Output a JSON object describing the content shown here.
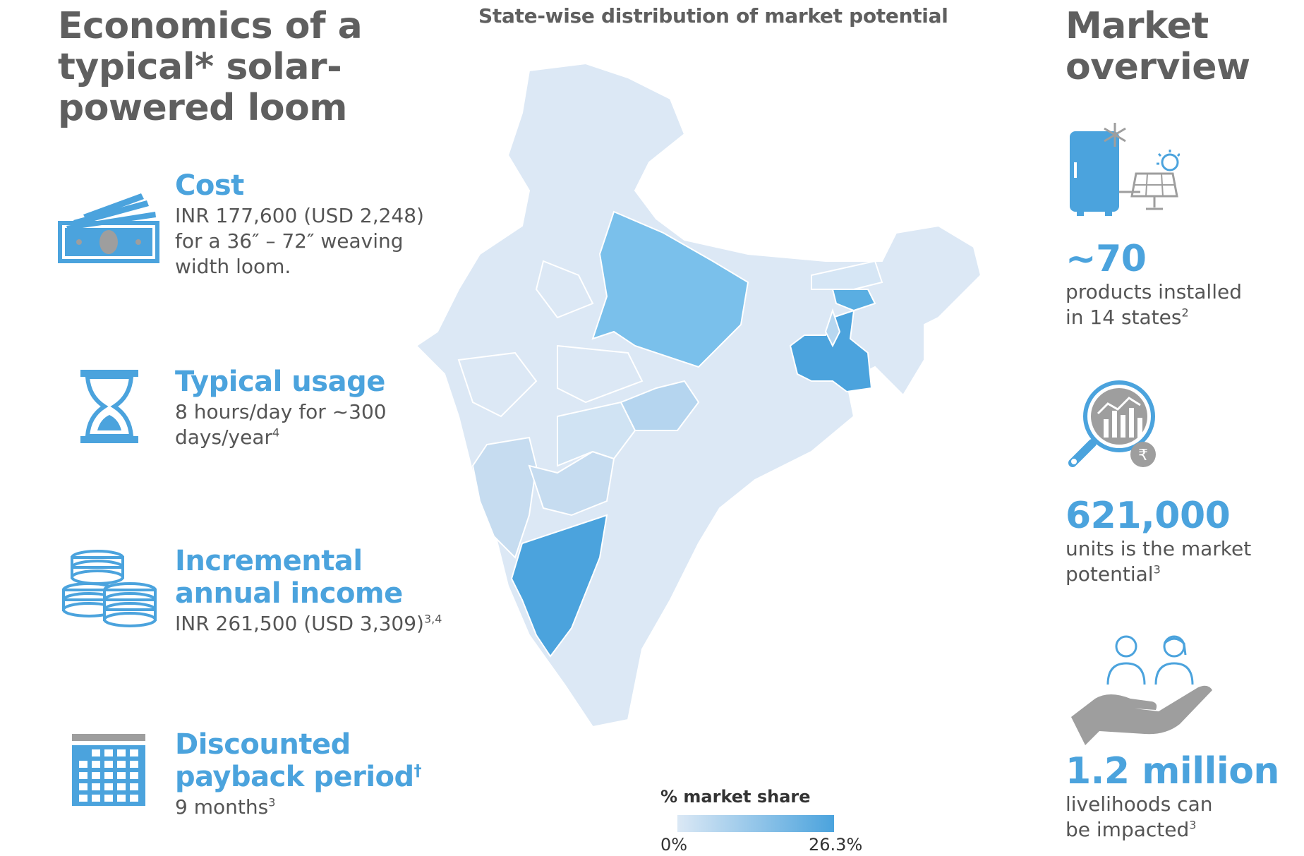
{
  "left": {
    "heading_lines": [
      "Economics of a",
      "typical* solar-",
      "powered loom"
    ],
    "items": [
      {
        "icon": "cash-icon",
        "title_lines": [
          "Cost"
        ],
        "body_lines": [
          "INR 177,600 (USD 2,248)",
          "for a 36″ – 72″ weaving",
          "width loom."
        ]
      },
      {
        "icon": "hourglass-icon",
        "title_lines": [
          "Typical usage"
        ],
        "body_lines": [
          "8 hours/day for ~300",
          "days/year"
        ],
        "body_sup": "4"
      },
      {
        "icon": "coins-icon",
        "title_lines": [
          "Incremental",
          "annual income"
        ],
        "body_lines": [
          "INR 261,500 (USD 3,309)"
        ],
        "body_sup": "3,4"
      },
      {
        "icon": "calendar-icon",
        "title_lines": [
          "Discounted",
          "payback period"
        ],
        "title_sup": "†",
        "body_lines": [
          "9 months"
        ],
        "body_sup": "3"
      }
    ]
  },
  "map": {
    "title": "State-wise distribution of market potential",
    "legend": {
      "title": "% market share",
      "min_label": "0%",
      "max_label": "26.3%",
      "color_min": "#dbe8f5",
      "color_max": "#4ba3dd"
    }
  },
  "right": {
    "heading_lines": [
      "Market",
      "overview"
    ],
    "stats": [
      {
        "icon": "fridge-solar-icon",
        "value": "~70",
        "label_lines": [
          "products installed",
          "in 14 states"
        ],
        "label_sup": "2"
      },
      {
        "icon": "market-analysis-icon",
        "value": "621,000",
        "label_lines": [
          "units is the market",
          "potential"
        ],
        "label_sup": "3"
      },
      {
        "icon": "people-hand-icon",
        "value": "1.2 million",
        "label_lines": [
          "livelihoods can",
          "be impacted"
        ],
        "label_sup": "3"
      }
    ]
  },
  "colors": {
    "accent": "#4ba3dd",
    "heading": "#5f5f5f",
    "icon_grey": "#9e9e9e"
  }
}
